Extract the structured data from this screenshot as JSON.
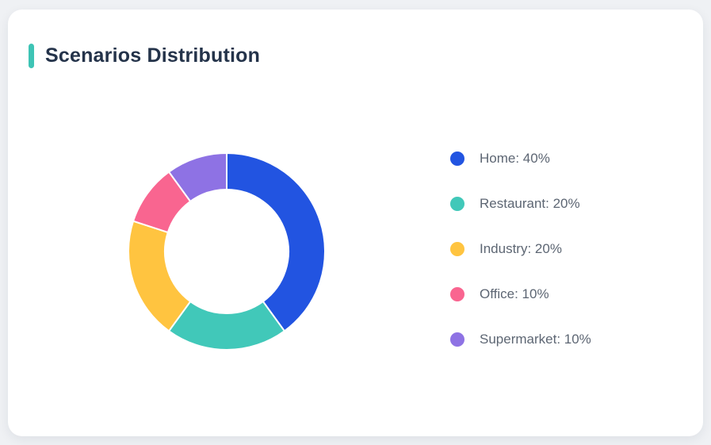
{
  "page": {
    "background_color": "#eff1f4"
  },
  "card": {
    "title": "Scenarios Distribution",
    "accent_color": "#3ec4b5",
    "background_color": "#ffffff"
  },
  "chart_data": {
    "type": "pie",
    "subtype": "donut",
    "title": "Scenarios Distribution",
    "categories": [
      "Home",
      "Restaurant",
      "Industry",
      "Office",
      "Supermarket"
    ],
    "values": [
      40,
      20,
      20,
      10,
      10
    ],
    "unit": "%",
    "colors": [
      "#2254e1",
      "#41c8b9",
      "#ffc440",
      "#f96590",
      "#8e72e4"
    ],
    "start_angle_deg": 0,
    "direction": "clockwise",
    "inner_radius_ratio": 0.63,
    "segment_gap_color": "#ffffff",
    "legend_position": "right",
    "legend": [
      {
        "label": "Home: 40%",
        "color": "#2254e1"
      },
      {
        "label": "Restaurant: 20%",
        "color": "#41c8b9"
      },
      {
        "label": "Industry: 20%",
        "color": "#ffc440"
      },
      {
        "label": "Office: 10%",
        "color": "#f96590"
      },
      {
        "label": "Supermarket: 10%",
        "color": "#8e72e4"
      }
    ]
  }
}
